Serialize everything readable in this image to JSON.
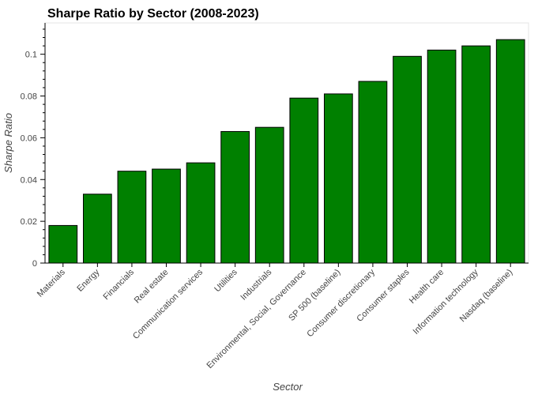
{
  "chart_data": {
    "type": "bar",
    "title": "Sharpe Ratio by Sector (2008-2023)",
    "xlabel": "Sector",
    "ylabel": "Sharpe Ratio",
    "ylim": [
      0,
      0.115
    ],
    "yticks": [
      0,
      0.02,
      0.04,
      0.06,
      0.08,
      0.1
    ],
    "ytick_labels": [
      "0",
      "0.02",
      "0.04",
      "0.06",
      "0.08",
      "0.1"
    ],
    "grid": false,
    "bar_color": "#008000",
    "categories": [
      "Materials",
      "Energy",
      "Financials",
      "Real estate",
      "Communication services",
      "Utilities",
      "Industrials",
      "Environmental, Social, Governance",
      "SP 500 (baseline)",
      "Consumer discretionary",
      "Consumer staples",
      "Health care",
      "Information technology",
      "Nasdaq (baseline)"
    ],
    "values": [
      0.018,
      0.033,
      0.044,
      0.045,
      0.048,
      0.063,
      0.065,
      0.079,
      0.081,
      0.087,
      0.099,
      0.102,
      0.104,
      0.107
    ]
  }
}
